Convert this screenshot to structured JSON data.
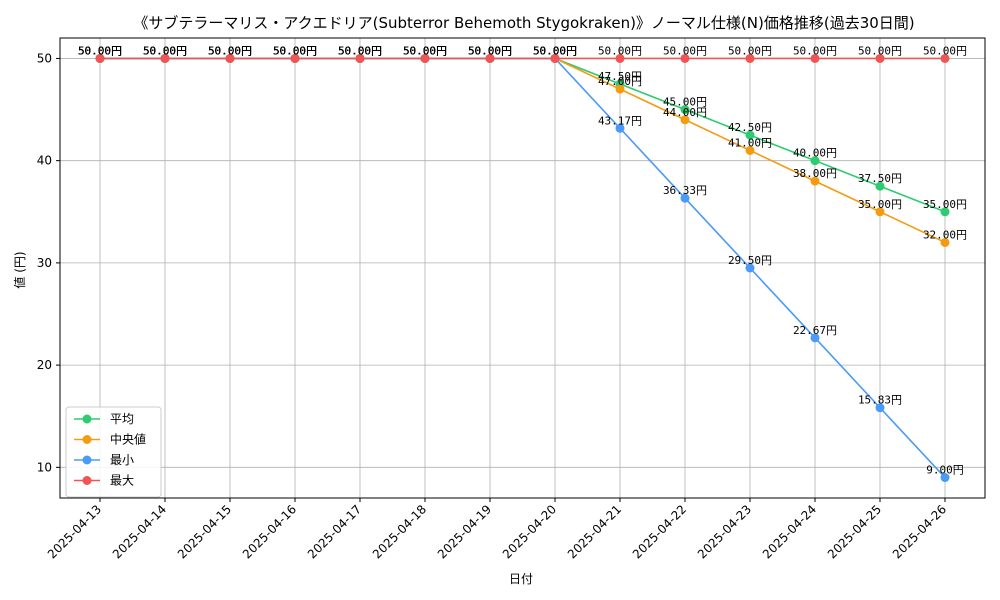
{
  "chart_data": {
    "type": "line",
    "title": "《サブテラーマリス・アクエドリア(Subterror Behemoth Stygokraken)》ノーマル仕様(N)価格推移(過去30日間)",
    "xlabel": "日付",
    "ylabel": "値 (円)",
    "ylim": [
      7,
      52
    ],
    "yticks": [
      10,
      20,
      30,
      40,
      50
    ],
    "grid": true,
    "legend_position": "lower-left",
    "label_suffix": "円",
    "categories": [
      "2025-04-13",
      "2025-04-14",
      "2025-04-15",
      "2025-04-16",
      "2025-04-17",
      "2025-04-18",
      "2025-04-19",
      "2025-04-20",
      "2025-04-21",
      "2025-04-22",
      "2025-04-23",
      "2025-04-24",
      "2025-04-25",
      "2025-04-26"
    ],
    "series": [
      {
        "name": "平均",
        "color": "#2ecc71",
        "values": [
          50,
          50,
          50,
          50,
          50,
          50,
          50,
          50,
          47.5,
          45,
          42.5,
          40,
          37.5,
          35
        ]
      },
      {
        "name": "中央値",
        "color": "#f39c12",
        "values": [
          50,
          50,
          50,
          50,
          50,
          50,
          50,
          50,
          47,
          44,
          41,
          38,
          35,
          32
        ]
      },
      {
        "name": "最小",
        "color": "#4a9bf7",
        "values": [
          50,
          50,
          50,
          50,
          50,
          50,
          50,
          50,
          43.17,
          36.33,
          29.5,
          22.67,
          15.83,
          9
        ]
      },
      {
        "name": "最大",
        "color": "#f05454",
        "values": [
          50,
          50,
          50,
          50,
          50,
          50,
          50,
          50,
          50,
          50,
          50,
          50,
          50,
          50
        ]
      }
    ]
  }
}
